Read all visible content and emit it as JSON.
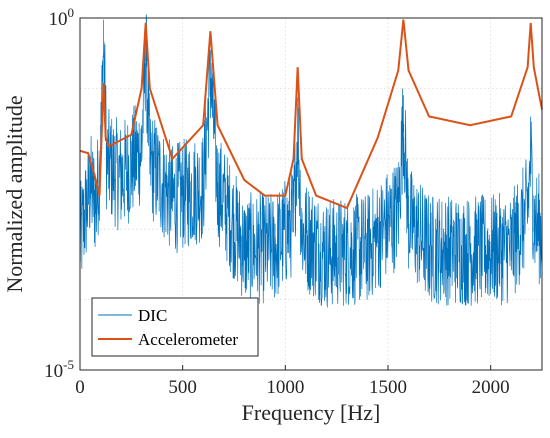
{
  "chart_data": {
    "type": "line",
    "xlabel": "Frequency [Hz]",
    "ylabel": "Normalized amplitude",
    "xlim": [
      0,
      2250
    ],
    "ylim": [
      1e-05,
      1
    ],
    "y_scale": "log",
    "grid": true,
    "legend_position": "bottom-left",
    "x_ticks": [
      0,
      500,
      1000,
      1500,
      2000
    ],
    "x_tick_labels": [
      "0",
      "500",
      "1000",
      "1500",
      "2000"
    ],
    "y_ticks": [
      1e-05,
      1
    ],
    "y_tick_labels": [
      {
        "base": "10",
        "exp": "-5"
      },
      {
        "base": "10",
        "exp": "0"
      }
    ],
    "peaks_hz": [
      115,
      320,
      635,
      1060,
      1575,
      2195
    ],
    "series": [
      {
        "name": "DIC",
        "color": "#0072BD",
        "x": [
          0,
          50,
          80,
          100,
          115,
          130,
          200,
          300,
          320,
          340,
          450,
          600,
          635,
          670,
          800,
          950,
          1040,
          1060,
          1080,
          1200,
          1400,
          1550,
          1575,
          1600,
          1700,
          1900,
          2100,
          2180,
          2195,
          2210,
          2250
        ],
        "y": [
          0.0015,
          0.009,
          0.005,
          0.03,
          0.95,
          0.02,
          0.012,
          0.03,
          0.8,
          0.02,
          0.006,
          0.009,
          0.35,
          0.009,
          0.0012,
          0.0012,
          0.003,
          0.06,
          0.002,
          0.001,
          0.0012,
          0.004,
          0.08,
          0.003,
          0.0012,
          0.0011,
          0.0012,
          0.004,
          0.025,
          0.003,
          0.002
        ]
      },
      {
        "name": "Accelerometer",
        "color": "#D95319",
        "x": [
          0,
          40,
          70,
          95,
          105,
          115,
          125,
          140,
          250,
          300,
          320,
          340,
          450,
          600,
          635,
          670,
          800,
          900,
          1000,
          1040,
          1060,
          1080,
          1150,
          1300,
          1450,
          1550,
          1575,
          1600,
          1700,
          1900,
          2100,
          2180,
          2195,
          2210,
          2250
        ],
        "y": [
          0.013,
          0.012,
          0.006,
          0.003,
          0.02,
          0.12,
          0.02,
          0.015,
          0.022,
          0.1,
          0.85,
          0.1,
          0.01,
          0.03,
          0.65,
          0.03,
          0.005,
          0.003,
          0.003,
          0.01,
          0.2,
          0.01,
          0.003,
          0.002,
          0.02,
          0.18,
          0.95,
          0.18,
          0.04,
          0.03,
          0.04,
          0.2,
          0.85,
          0.2,
          0.05
        ]
      }
    ]
  }
}
